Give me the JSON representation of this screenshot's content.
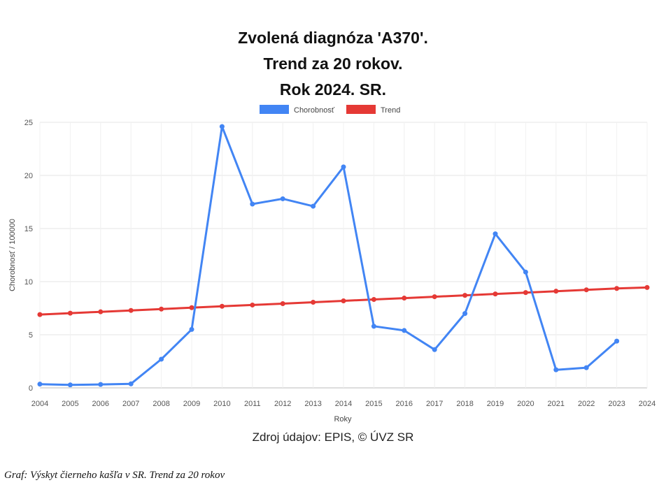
{
  "chart_data": {
    "type": "line",
    "title_lines": [
      "Zvolená diagnóza 'A370'.",
      "Trend za 20 rokov.",
      "Rok 2024. SR."
    ],
    "xlabel": "Roky",
    "ylabel": "Chorobnosť / 100000",
    "ylim": [
      0,
      25
    ],
    "yticks": [
      0,
      5,
      10,
      15,
      20,
      25
    ],
    "grid": true,
    "legend_position": "top-center",
    "x": [
      2004,
      2005,
      2006,
      2007,
      2008,
      2009,
      2010,
      2011,
      2012,
      2013,
      2014,
      2015,
      2016,
      2017,
      2018,
      2019,
      2020,
      2021,
      2022,
      2023,
      2024
    ],
    "series": [
      {
        "name": "Chorobnosť",
        "color": "#4285f4",
        "values": [
          0.35,
          0.28,
          0.32,
          0.38,
          2.7,
          5.5,
          24.6,
          17.3,
          17.8,
          17.1,
          20.8,
          5.8,
          5.4,
          3.6,
          7.0,
          14.5,
          10.9,
          1.7,
          1.9,
          4.4,
          null
        ]
      },
      {
        "name": "Trend",
        "color": "#e53935",
        "values": [
          6.9,
          7.03,
          7.16,
          7.29,
          7.42,
          7.55,
          7.68,
          7.8,
          7.93,
          8.06,
          8.19,
          8.32,
          8.45,
          8.58,
          8.71,
          8.84,
          8.97,
          9.1,
          9.23,
          9.36,
          9.45
        ]
      }
    ]
  },
  "source": "Zdroj údajov: EPIS, © ÚVZ SR",
  "caption": "Graf: Výskyt čierneho kašľa v SR. Trend za 20 rokov"
}
